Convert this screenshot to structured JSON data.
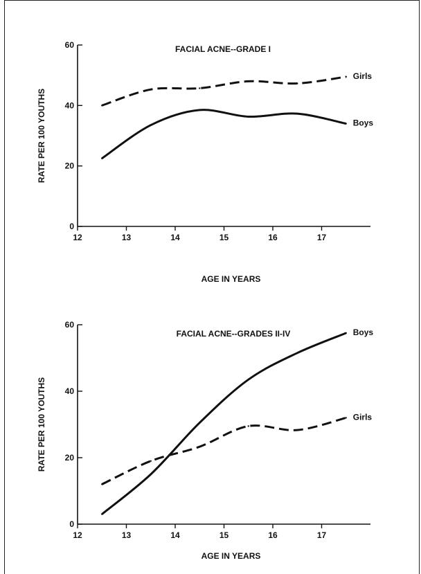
{
  "chart_data": [
    {
      "type": "line",
      "title": "FACIAL ACNE--GRADE I",
      "xlabel": "AGE IN YEARS",
      "ylabel": "RATE PER 100 YOUTHS",
      "xlim": [
        12,
        18
      ],
      "ylim": [
        0,
        60
      ],
      "x_ticks": [
        12,
        13,
        14,
        15,
        16,
        17
      ],
      "y_ticks": [
        0,
        20,
        40,
        60
      ],
      "series": [
        {
          "name": "Girls",
          "style": "dashed",
          "x": [
            12.5,
            13.5,
            14.5,
            15.5,
            16.5,
            17.5
          ],
          "values": [
            40,
            45.3,
            45.7,
            48,
            47.3,
            49.5
          ]
        },
        {
          "name": "Boys",
          "style": "solid",
          "x": [
            12.5,
            13.5,
            14.5,
            15.5,
            16.5,
            17.5
          ],
          "values": [
            22.5,
            33.5,
            38.5,
            36.3,
            37.3,
            34
          ]
        }
      ]
    },
    {
      "type": "line",
      "title": "FACIAL ACNE--GRADES II-IV",
      "xlabel": "AGE IN YEARS",
      "ylabel": "RATE PER 100 YOUTHS",
      "xlim": [
        12,
        18
      ],
      "ylim": [
        0,
        60
      ],
      "x_ticks": [
        12,
        13,
        14,
        15,
        16,
        17
      ],
      "y_ticks": [
        0,
        20,
        40,
        60
      ],
      "series": [
        {
          "name": "Boys",
          "style": "solid",
          "x": [
            12.5,
            13.5,
            14.5,
            15.5,
            16.5,
            17.5
          ],
          "values": [
            3,
            15,
            30.5,
            43.5,
            51.5,
            57.5
          ]
        },
        {
          "name": "Girls",
          "style": "dashed",
          "x": [
            12.5,
            13.5,
            14.5,
            15.5,
            16.5,
            17.5
          ],
          "values": [
            12,
            19,
            23.3,
            29.5,
            28.3,
            32
          ]
        }
      ]
    }
  ]
}
